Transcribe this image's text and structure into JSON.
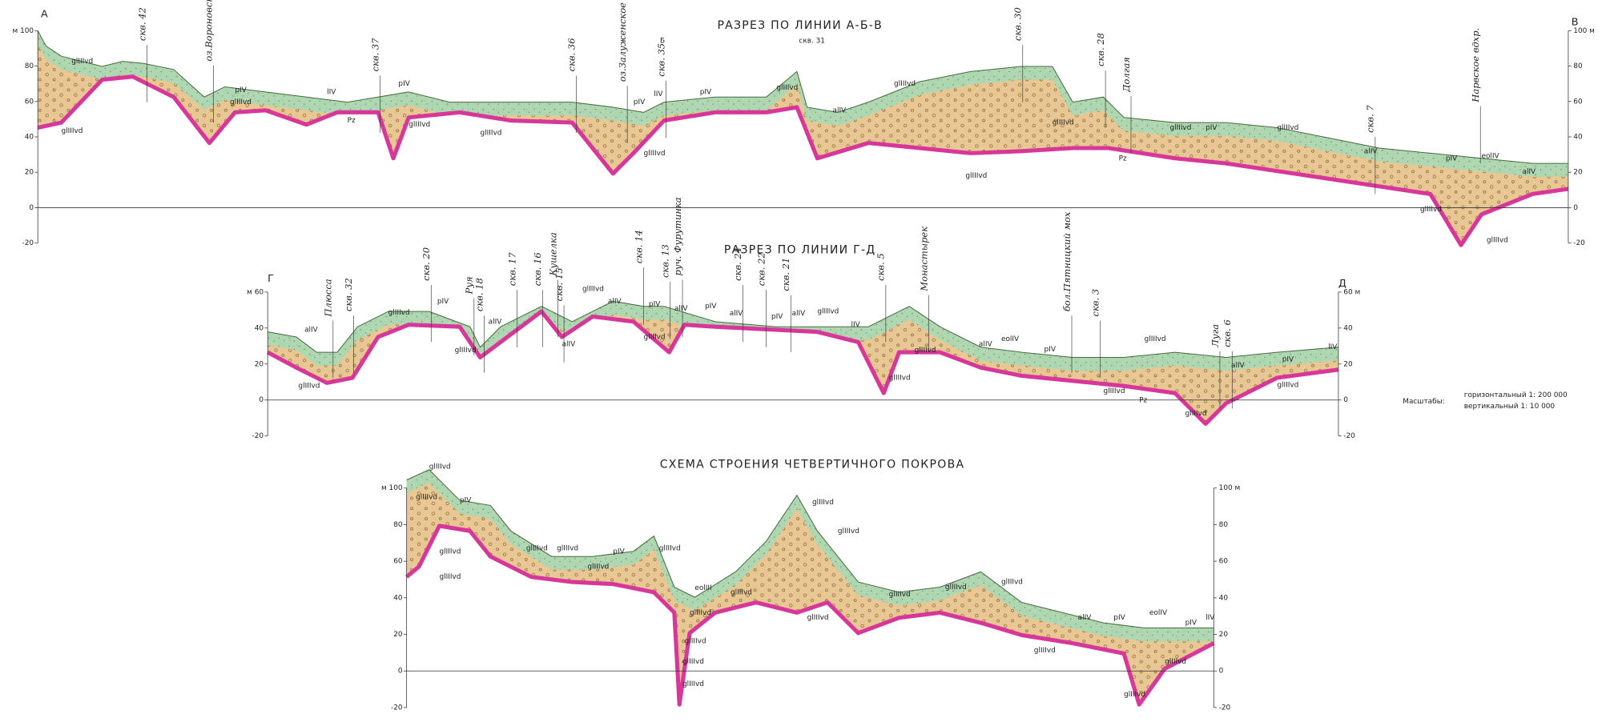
{
  "sections": [
    {
      "title": "РАЗРЕЗ ПО ЛИНИИ А-Б-В",
      "start": "А",
      "end": "В",
      "left_ticks": [
        "м 100",
        "80",
        "60",
        "40",
        "20",
        "0",
        "-20"
      ],
      "right_ticks": [
        "100 м",
        "80",
        "60",
        "40",
        "20",
        "0",
        "-20"
      ],
      "labels": [
        "скв. 42",
        "оз.Вороновское",
        "скв. 37",
        "скв. 36",
        "оз.Залуженское",
        "Б",
        "скв. 35",
        "скв. 31",
        "скв. 30",
        "скв. 28",
        "Долгая",
        "скв. 7",
        "Нарвское вдхр.",
        "glIIIvd",
        "glIIIvd",
        "glIIIvd",
        "pIV",
        "lIV",
        "Pz",
        "pIV",
        "glIIIvd",
        "glIIIvd",
        "pIV",
        "lIV",
        "glIIIvd",
        "pIV",
        "glIIIvd",
        "alIV",
        "glIIIvd",
        "glIIIvd",
        "glIIIvd",
        "Pz",
        "glIIIvd",
        "pIV",
        "glIIIvd",
        "alIV",
        "pIV",
        "eolIV",
        "alIV",
        "glIIIvd",
        "glIIIvd"
      ]
    },
    {
      "title": "РАЗРЕЗ ПО ЛИНИИ Г-Д",
      "start": "Г",
      "end": "Д",
      "left_ticks": [
        "м 60",
        "40",
        "20",
        "0",
        "-20"
      ],
      "right_ticks": [
        "60 м",
        "40",
        "20",
        "0",
        "-20"
      ],
      "labels": [
        "Плюсса",
        "скв. 32",
        "скв. 20",
        "Руя",
        "скв. 18",
        "скв. 17",
        "скв. 16",
        "Кушелка",
        "скв. 15",
        "скв. 14",
        "скв. 13",
        "руч. Фурутинка",
        "скв. 24",
        "скв. 22",
        "скв. 21",
        "скв. 5",
        "Монастырек",
        "бол.Пятницкий мох",
        "скв. 3",
        "Луга",
        "скв. 6",
        "alIV",
        "glIIIvd",
        "pIV",
        "glIIIvd",
        "alIV",
        "glIIIvd",
        "alIV",
        "glIIIvd",
        "alIV",
        "pIV",
        "alIV",
        "glIIIvd",
        "pIV",
        "alIV",
        "pIV",
        "alIV",
        "glIIIvd",
        "lIV",
        "glIIIvd",
        "glIIIvd",
        "alIV",
        "eolIV",
        "pIV",
        "glIIIvd",
        "alIV",
        "pIV",
        "lIV",
        "glIIIvd",
        "glIIIvd",
        "Pz",
        "glIIIvd"
      ]
    },
    {
      "title": "СХЕМА СТРОЕНИЯ ЧЕТВЕРТИЧНОГО ПОКРОВА",
      "left_ticks": [
        "м 100",
        "80",
        "60",
        "40",
        "20",
        "0",
        "-20"
      ],
      "right_ticks": [
        "100 м",
        "80",
        "60",
        "40",
        "20",
        "0",
        "-20"
      ],
      "labels": [
        "glIIIvd",
        "glIIIvd",
        "pIV",
        "glIIIvd",
        "glIIIvd",
        "glIIIvd",
        "glIIIvd",
        "glIIIvd",
        "pIV",
        "glIIIvd",
        "eolIII",
        "glIIIvd",
        "glIIIvd",
        "glIIIvd",
        "glIIIvd",
        "glIIIvd",
        "glIIIvd",
        "glIIIvd",
        "glIIIvd",
        "glIIIvd",
        "glIIIvd",
        "glIIIvd",
        "glIIIvd",
        "alIV",
        "pIV",
        "eolIV",
        "pIV",
        "lIV",
        "glIIIvd",
        "glIIIvd"
      ]
    }
  ],
  "scale": {
    "label": "Масштабы:",
    "horizontal": "горизонтальный 1: 200 000",
    "vertical": "вертикальный 1: 10 000"
  }
}
